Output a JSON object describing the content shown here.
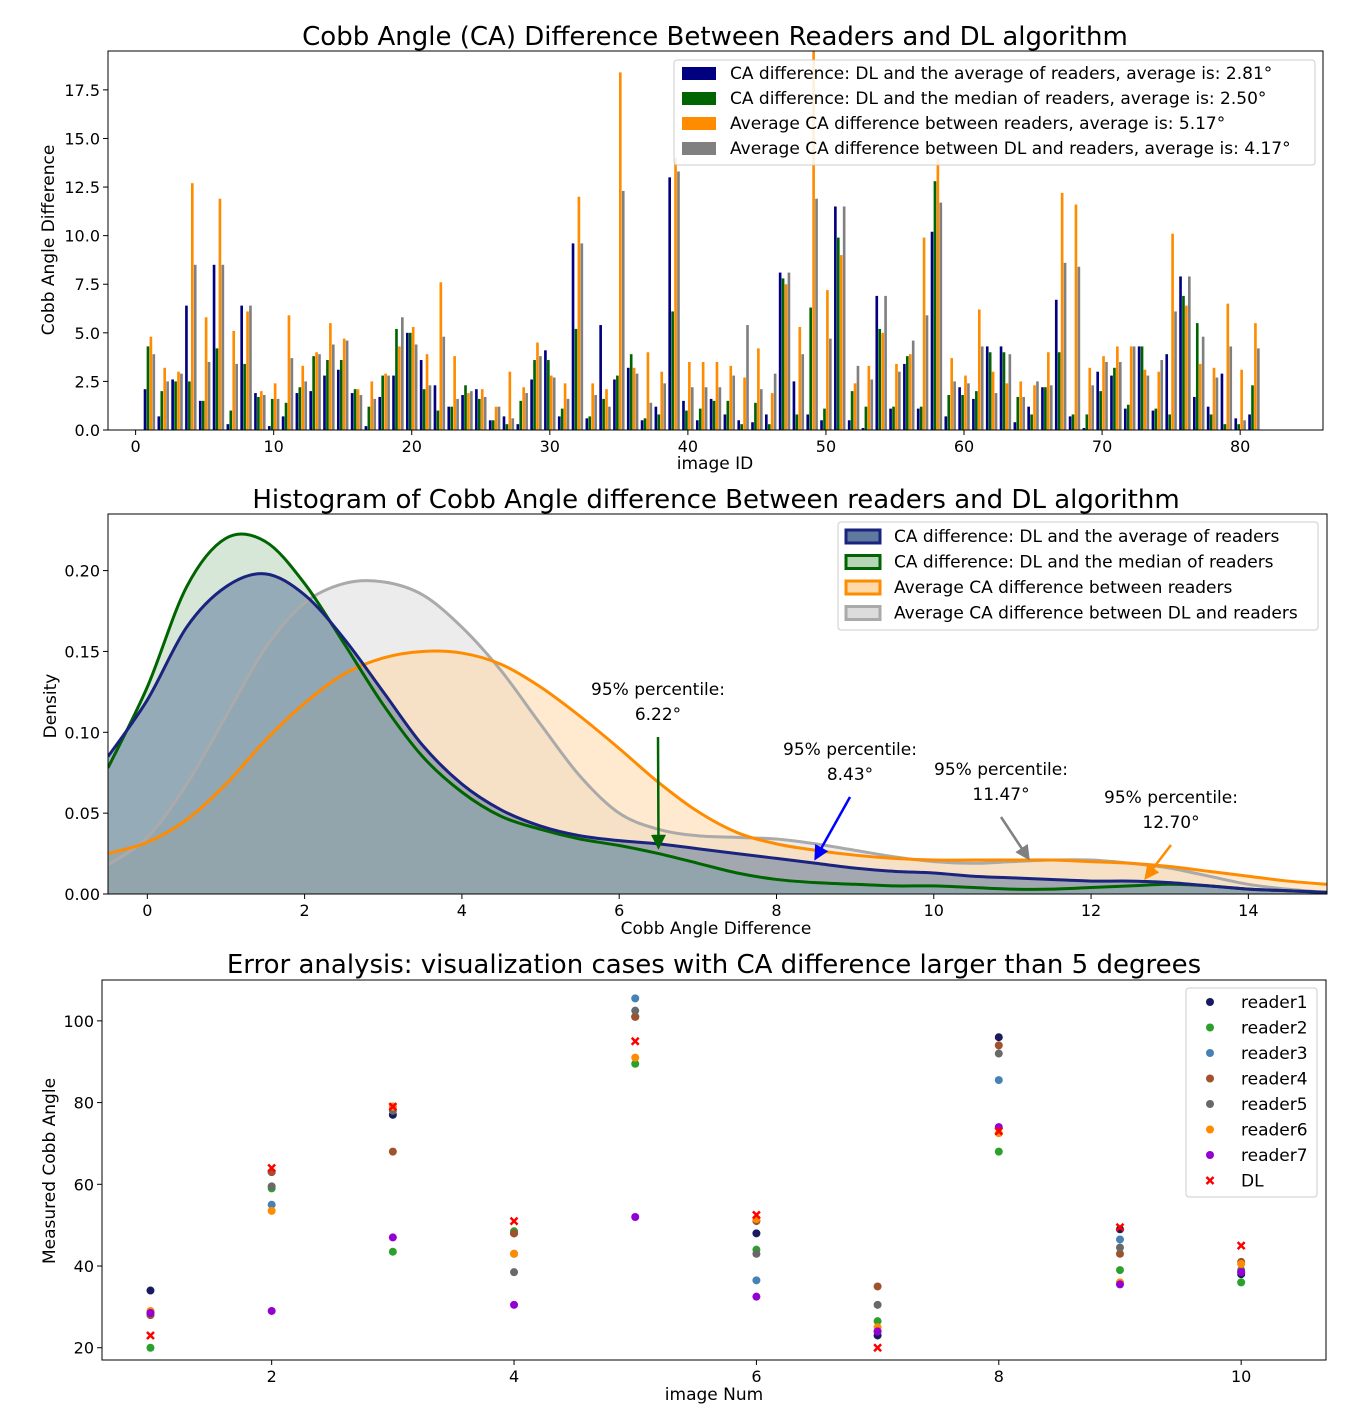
{
  "chart_data": [
    {
      "type": "bar",
      "title": "Cobb Angle (CA) Difference Between Readers and DL algorithm",
      "xlabel": "image ID",
      "ylabel": "Cobb Angle Difference",
      "xlim": [
        -2,
        86
      ],
      "ylim": [
        0,
        19.5
      ],
      "x_ticks": [
        0,
        10,
        20,
        30,
        40,
        50,
        60,
        70,
        80
      ],
      "y_ticks": [
        0.0,
        2.5,
        5.0,
        7.5,
        10.0,
        12.5,
        15.0,
        17.5
      ],
      "legend_position": "top-right",
      "x": [
        1,
        2,
        3,
        4,
        5,
        6,
        7,
        8,
        9,
        10,
        11,
        12,
        13,
        14,
        15,
        16,
        17,
        18,
        19,
        20,
        21,
        22,
        23,
        24,
        25,
        26,
        27,
        28,
        29,
        30,
        31,
        32,
        33,
        34,
        35,
        36,
        37,
        38,
        39,
        40,
        41,
        42,
        43,
        44,
        45,
        46,
        47,
        48,
        49,
        50,
        51,
        52,
        53,
        54,
        55,
        56,
        57,
        58,
        59,
        60,
        61,
        62,
        63,
        64,
        65,
        66,
        67,
        68,
        69,
        70,
        71,
        72,
        73,
        74,
        75,
        76,
        77,
        78,
        79,
        80,
        81
      ],
      "series": [
        {
          "name": "CA difference: DL and the average of readers, average is: 2.81°",
          "color": "#000080",
          "values": [
            2.1,
            0.7,
            2.6,
            6.4,
            1.5,
            8.5,
            0.3,
            6.4,
            1.9,
            0.2,
            0.7,
            1.9,
            2.0,
            2.8,
            3.1,
            1.9,
            0.2,
            1.7,
            2.8,
            5.0,
            3.6,
            2.3,
            1.2,
            1.8,
            2.1,
            0.5,
            0.7,
            0.3,
            2.6,
            4.1,
            0.7,
            9.6,
            0.6,
            5.4,
            2.6,
            3.2,
            0.5,
            1.2,
            13.0,
            1.5,
            0.5,
            1.6,
            0.8,
            0.5,
            0.4,
            0.8,
            8.1,
            2.5,
            0.8,
            0.5,
            11.5,
            0.5,
            0.1,
            6.9,
            1.1,
            3.4,
            1.1,
            10.2,
            0.7,
            2.2,
            1.6,
            4.3,
            4.3,
            0.4,
            1.2,
            2.2,
            6.7,
            0.7,
            0.1,
            3.0,
            2.8,
            1.1,
            4.3,
            1.0,
            3.9,
            7.9,
            1.7,
            1.2,
            2.9,
            0.6,
            0.8
          ]
        },
        {
          "name": "CA difference: DL and the median of readers, average is: 2.50°",
          "color": "#006400",
          "values": [
            4.3,
            2.0,
            2.5,
            2.5,
            1.5,
            4.2,
            1.0,
            3.4,
            1.7,
            1.6,
            1.4,
            2.2,
            3.8,
            3.6,
            3.6,
            2.1,
            1.2,
            2.8,
            5.2,
            5.0,
            2.1,
            1.0,
            1.2,
            2.3,
            1.6,
            0.5,
            0.3,
            1.5,
            3.6,
            3.6,
            1.1,
            5.2,
            0.7,
            1.6,
            2.8,
            3.9,
            0.6,
            0.8,
            6.1,
            1.0,
            1.1,
            1.5,
            1.5,
            0.3,
            1.4,
            0.3,
            7.8,
            0.8,
            6.3,
            1.1,
            9.9,
            2.0,
            1.2,
            5.2,
            1.2,
            3.8,
            1.2,
            12.8,
            1.8,
            1.8,
            2.0,
            4.0,
            4.0,
            1.7,
            0.8,
            2.2,
            4.0,
            0.8,
            0.8,
            2.0,
            3.2,
            1.3,
            4.3,
            1.1,
            0.8,
            6.9,
            5.5,
            0.8,
            0.3,
            0.3,
            2.3
          ]
        },
        {
          "name": "Average CA difference between readers, average is: 5.17°",
          "color": "#FF8C00",
          "values": [
            4.8,
            3.2,
            3.0,
            12.7,
            5.8,
            11.9,
            5.1,
            6.1,
            2.0,
            2.4,
            5.9,
            3.3,
            4.0,
            5.5,
            4.7,
            2.1,
            2.5,
            2.9,
            4.3,
            5.3,
            3.9,
            7.6,
            3.8,
            1.9,
            2.1,
            1.2,
            3.0,
            2.2,
            4.5,
            2.8,
            2.4,
            12.0,
            2.4,
            2.1,
            18.4,
            3.2,
            4.0,
            3.0,
            14.0,
            3.5,
            3.5,
            3.5,
            3.3,
            2.7,
            4.2,
            1.9,
            7.5,
            5.3,
            19.5,
            7.2,
            9.0,
            2.4,
            3.3,
            5.0,
            3.4,
            3.9,
            9.9,
            14.0,
            3.7,
            2.8,
            6.2,
            3.0,
            2.4,
            2.5,
            2.3,
            4.0,
            12.2,
            11.6,
            3.2,
            3.8,
            4.3,
            4.3,
            3.1,
            3.0,
            10.1,
            6.4,
            3.4,
            3.2,
            6.5,
            3.1,
            5.5
          ]
        },
        {
          "name": "Average CA difference between DL and readers, average is: 4.17°",
          "color": "#808080",
          "values": [
            3.9,
            2.5,
            2.9,
            8.5,
            3.5,
            8.5,
            3.4,
            6.4,
            1.8,
            1.6,
            3.7,
            2.5,
            3.9,
            4.4,
            4.6,
            1.8,
            1.6,
            2.8,
            5.8,
            4.4,
            2.3,
            4.8,
            1.6,
            2.0,
            1.7,
            1.2,
            0.6,
            1.9,
            3.8,
            2.7,
            1.6,
            9.6,
            1.8,
            1.2,
            12.3,
            2.9,
            1.4,
            2.4,
            13.3,
            2.2,
            2.2,
            2.2,
            2.8,
            5.4,
            2.1,
            2.9,
            8.1,
            3.9,
            11.9,
            4.7,
            11.5,
            3.3,
            2.6,
            6.9,
            3.0,
            4.6,
            5.9,
            11.7,
            2.5,
            2.4,
            4.3,
            1.9,
            3.9,
            1.7,
            2.5,
            2.3,
            8.6,
            8.4,
            2.3,
            3.5,
            3.5,
            4.3,
            2.8,
            3.6,
            6.1,
            7.9,
            4.8,
            2.7,
            4.3,
            0.5,
            4.2
          ]
        }
      ]
    },
    {
      "type": "area",
      "title": "Histogram of Cobb Angle difference Between readers and DL algorithm",
      "xlabel": "Cobb Angle Difference",
      "ylabel": "Density",
      "xlim": [
        -0.5,
        15.0
      ],
      "ylim": [
        0,
        0.235
      ],
      "x_ticks": [
        0,
        2,
        4,
        6,
        8,
        10,
        12,
        14
      ],
      "y_ticks": [
        "0.00",
        "0.05",
        "0.10",
        "0.15",
        "0.20"
      ],
      "legend_position": "top-right",
      "series": [
        {
          "name": "CA difference: DL and the average of readers",
          "line_color": "#1a237e",
          "fill_color": "#5f7a9e",
          "x": [
            -0.5,
            0,
            0.5,
            1,
            1.5,
            2,
            2.5,
            3,
            3.5,
            4,
            4.5,
            5,
            5.5,
            6,
            6.5,
            7,
            7.5,
            8,
            8.5,
            9,
            9.5,
            10,
            10.5,
            11,
            11.5,
            12,
            12.5,
            13,
            13.5,
            14,
            14.5,
            15
          ],
          "y": [
            0.085,
            0.12,
            0.165,
            0.19,
            0.198,
            0.185,
            0.158,
            0.125,
            0.092,
            0.068,
            0.052,
            0.042,
            0.036,
            0.033,
            0.031,
            0.028,
            0.025,
            0.022,
            0.019,
            0.016,
            0.014,
            0.013,
            0.011,
            0.01,
            0.009,
            0.008,
            0.008,
            0.007,
            0.005,
            0.003,
            0.002,
            0.001
          ]
        },
        {
          "name": "CA difference: DL and the median of readers",
          "line_color": "#006400",
          "fill_color": "#b7d4b7",
          "x": [
            -0.5,
            0,
            0.5,
            1,
            1.5,
            2,
            2.5,
            3,
            3.5,
            4,
            4.5,
            5,
            5.5,
            6,
            6.5,
            7,
            7.5,
            8,
            8.5,
            9,
            9.5,
            10,
            10.5,
            11,
            11.5,
            12,
            12.5,
            13,
            13.5,
            14,
            14.5,
            15
          ],
          "y": [
            0.078,
            0.128,
            0.19,
            0.22,
            0.218,
            0.192,
            0.155,
            0.117,
            0.085,
            0.063,
            0.048,
            0.04,
            0.034,
            0.03,
            0.025,
            0.019,
            0.013,
            0.009,
            0.007,
            0.006,
            0.005,
            0.005,
            0.004,
            0.003,
            0.003,
            0.004,
            0.005,
            0.006,
            0.005,
            0.003,
            0.002,
            0.001
          ]
        },
        {
          "name": "Average CA difference between readers",
          "line_color": "#FF8C00",
          "fill_color": "#ffd9a8",
          "x": [
            -0.5,
            0,
            0.5,
            1,
            1.5,
            2,
            2.5,
            3,
            3.5,
            4,
            4.5,
            5,
            5.5,
            6,
            6.5,
            7,
            7.5,
            8,
            8.5,
            9,
            9.5,
            10,
            10.5,
            11,
            11.5,
            12,
            12.5,
            13,
            13.5,
            14,
            14.5,
            15
          ],
          "y": [
            0.025,
            0.032,
            0.046,
            0.068,
            0.095,
            0.118,
            0.136,
            0.146,
            0.15,
            0.149,
            0.142,
            0.128,
            0.11,
            0.09,
            0.069,
            0.051,
            0.038,
            0.031,
            0.027,
            0.024,
            0.022,
            0.021,
            0.021,
            0.021,
            0.021,
            0.02,
            0.019,
            0.017,
            0.014,
            0.011,
            0.008,
            0.006
          ]
        },
        {
          "name": "Average CA difference between DL and readers",
          "line_color": "#aaaaaa",
          "fill_color": "#dcdcdc",
          "x": [
            -0.5,
            0,
            0.5,
            1,
            1.5,
            2,
            2.5,
            3,
            3.5,
            4,
            4.5,
            5,
            5.5,
            6,
            6.5,
            7,
            7.5,
            8,
            8.5,
            9,
            9.5,
            10,
            10.5,
            11,
            11.5,
            12,
            12.5,
            13,
            13.5,
            14,
            14.5,
            15
          ],
          "y": [
            0.018,
            0.035,
            0.068,
            0.11,
            0.152,
            0.18,
            0.192,
            0.193,
            0.185,
            0.165,
            0.138,
            0.105,
            0.073,
            0.05,
            0.04,
            0.036,
            0.035,
            0.034,
            0.031,
            0.027,
            0.023,
            0.02,
            0.019,
            0.02,
            0.021,
            0.021,
            0.019,
            0.016,
            0.011,
            0.006,
            0.003,
            0.001
          ]
        }
      ],
      "annotations": [
        {
          "lines": [
            "95% percentile:",
            "6.22°"
          ],
          "color": "#006400",
          "x": 6.5,
          "y": 0.028
        },
        {
          "lines": [
            "95% percentile:",
            "8.43°"
          ],
          "color": "#0000ff",
          "x": 8.5,
          "y": 0.021
        },
        {
          "lines": [
            "95% percentile:",
            "11.47°"
          ],
          "color": "#808080",
          "x": 11.2,
          "y": 0.021
        },
        {
          "lines": [
            "95% percentile:",
            "12.70°"
          ],
          "color": "#FF8C00",
          "x": 12.7,
          "y": 0.009
        }
      ]
    },
    {
      "type": "scatter",
      "title": "Error analysis: visualization cases with CA difference larger than 5 degrees",
      "xlabel": "image Num",
      "ylabel": "Measured Cobb Angle",
      "xlim": [
        0.6,
        10.7
      ],
      "ylim": [
        17,
        110
      ],
      "x_ticks": [
        2,
        4,
        6,
        8,
        10
      ],
      "y_ticks": [
        20,
        40,
        60,
        80,
        100
      ],
      "legend_position": "top-right",
      "x": [
        1,
        2,
        3,
        4,
        5,
        6,
        7,
        8,
        9,
        10
      ],
      "series": [
        {
          "name": "reader1",
          "color": "#1a1a5e",
          "marker": "circle",
          "values": [
            34,
            63,
            77,
            48,
            101,
            48,
            23,
            96,
            49,
            38
          ]
        },
        {
          "name": "reader2",
          "color": "#2ca02c",
          "marker": "circle",
          "values": [
            20,
            59,
            43.5,
            48.5,
            89.5,
            44,
            26.5,
            68,
            39,
            36
          ]
        },
        {
          "name": "reader3",
          "color": "#4682B4",
          "marker": "circle",
          "values": [
            28,
            55,
            79,
            43,
            105.5,
            36.5,
            24,
            85.5,
            46.5,
            38.5
          ]
        },
        {
          "name": "reader4",
          "color": "#a0522d",
          "marker": "circle",
          "values": [
            28,
            63,
            68,
            48,
            101,
            51,
            35,
            94,
            43,
            41
          ]
        },
        {
          "name": "reader5",
          "color": "#696969",
          "marker": "circle",
          "values": [
            28.5,
            59.5,
            78,
            38.5,
            102.5,
            43,
            30.5,
            92,
            44.5,
            39
          ]
        },
        {
          "name": "reader6",
          "color": "#FF8C00",
          "marker": "circle",
          "values": [
            29,
            53.5,
            79,
            43,
            91,
            51.5,
            25,
            72.5,
            36,
            40.5
          ]
        },
        {
          "name": "reader7",
          "color": "#9400D3",
          "marker": "circle",
          "values": [
            28.5,
            29,
            47,
            30.5,
            52,
            32.5,
            24,
            74,
            35.5,
            38.5
          ]
        },
        {
          "name": "DL",
          "color": "#ff0000",
          "marker": "x",
          "values": [
            23,
            64,
            79,
            51,
            95,
            52.5,
            20,
            73,
            49.5,
            45
          ]
        }
      ]
    }
  ]
}
